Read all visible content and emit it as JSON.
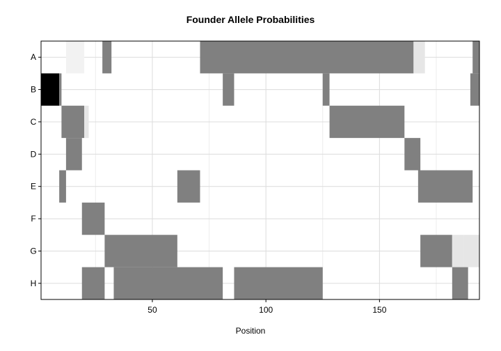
{
  "chart_data": {
    "type": "heatmap",
    "title": "Founder Allele Probabilities",
    "xlabel": "Position",
    "ylabel": "",
    "xlim": [
      1,
      194
    ],
    "x_ticks": [
      50,
      100,
      150
    ],
    "rows": [
      "A",
      "B",
      "C",
      "D",
      "E",
      "F",
      "G",
      "H"
    ],
    "value_range": [
      0,
      1
    ],
    "color_scale": {
      "low": "#ffffff",
      "mid": "#808080",
      "high": "#000000"
    },
    "grid": true,
    "cells": [
      {
        "row": "A",
        "x_start": 12,
        "x_end": 20,
        "value": 0.05
      },
      {
        "row": "A",
        "x_start": 28,
        "x_end": 32,
        "value": 0.5
      },
      {
        "row": "A",
        "x_start": 71,
        "x_end": 165,
        "value": 0.5
      },
      {
        "row": "A",
        "x_start": 165,
        "x_end": 170,
        "value": 0.1
      },
      {
        "row": "A",
        "x_start": 191,
        "x_end": 194,
        "value": 0.5
      },
      {
        "row": "B",
        "x_start": 1,
        "x_end": 9,
        "value": 1.0
      },
      {
        "row": "B",
        "x_start": 9,
        "x_end": 10,
        "value": 0.5
      },
      {
        "row": "B",
        "x_start": 81,
        "x_end": 86,
        "value": 0.5
      },
      {
        "row": "B",
        "x_start": 125,
        "x_end": 128,
        "value": 0.5
      },
      {
        "row": "B",
        "x_start": 190,
        "x_end": 194,
        "value": 0.5
      },
      {
        "row": "C",
        "x_start": 10,
        "x_end": 20,
        "value": 0.5
      },
      {
        "row": "C",
        "x_start": 20,
        "x_end": 22,
        "value": 0.1
      },
      {
        "row": "C",
        "x_start": 128,
        "x_end": 161,
        "value": 0.5
      },
      {
        "row": "D",
        "x_start": 12,
        "x_end": 19,
        "value": 0.5
      },
      {
        "row": "D",
        "x_start": 161,
        "x_end": 168,
        "value": 0.5
      },
      {
        "row": "E",
        "x_start": 9,
        "x_end": 12,
        "value": 0.5
      },
      {
        "row": "E",
        "x_start": 61,
        "x_end": 71,
        "value": 0.5
      },
      {
        "row": "E",
        "x_start": 167,
        "x_end": 191,
        "value": 0.5
      },
      {
        "row": "F",
        "x_start": 19,
        "x_end": 29,
        "value": 0.5
      },
      {
        "row": "G",
        "x_start": 29,
        "x_end": 61,
        "value": 0.5
      },
      {
        "row": "G",
        "x_start": 168,
        "x_end": 182,
        "value": 0.5
      },
      {
        "row": "G",
        "x_start": 182,
        "x_end": 187,
        "value": 0.1
      },
      {
        "row": "G",
        "x_start": 187,
        "x_end": 194,
        "value": 0.1
      },
      {
        "row": "H",
        "x_start": 19,
        "x_end": 29,
        "value": 0.5
      },
      {
        "row": "H",
        "x_start": 33,
        "x_end": 81,
        "value": 0.5
      },
      {
        "row": "H",
        "x_start": 86,
        "x_end": 125,
        "value": 0.5
      },
      {
        "row": "H",
        "x_start": 182,
        "x_end": 189,
        "value": 0.5
      }
    ]
  }
}
